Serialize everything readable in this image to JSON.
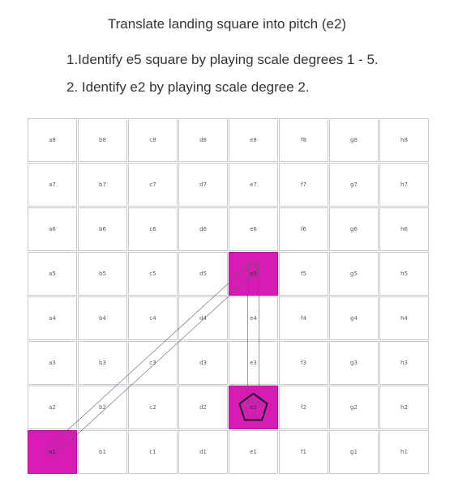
{
  "title": "Translate landing square into pitch (e2)",
  "steps": [
    "1.Identify e5 square by playing scale degrees 1 - 5.",
    "2. Identify e2 by playing scale degree 2."
  ],
  "board": {
    "files": [
      "a",
      "b",
      "c",
      "d",
      "e",
      "f",
      "g",
      "h"
    ],
    "ranks": [
      8,
      7,
      6,
      5,
      4,
      3,
      2,
      1
    ],
    "highlighted_squares": [
      "a1",
      "e5",
      "e2"
    ],
    "highlight_color": "#d81bb4",
    "path_from": "a1",
    "path_via": "e5",
    "path_to": "e2",
    "marker_icon": "pentagon-icon"
  }
}
